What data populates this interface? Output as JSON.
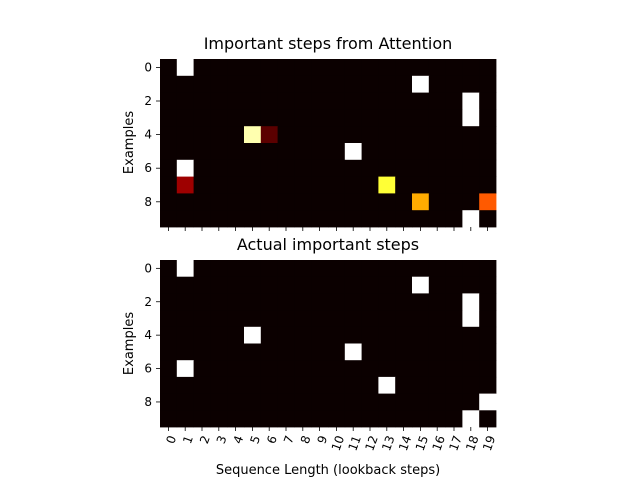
{
  "chart_data": [
    {
      "type": "heatmap",
      "title": "Important steps from Attention",
      "xlabel": "",
      "ylabel": "Examples",
      "x_ticks": [
        "0",
        "1",
        "2",
        "3",
        "4",
        "5",
        "6",
        "7",
        "8",
        "9",
        "10",
        "11",
        "12",
        "13",
        "14",
        "15",
        "16",
        "17",
        "18",
        "19"
      ],
      "x_tick_labels_visible": false,
      "y_ticks": [
        0,
        2,
        4,
        6,
        8
      ],
      "rows": 10,
      "cols": 20,
      "colormap": "hot",
      "value_range": [
        0,
        1
      ],
      "values": [
        [
          0,
          1,
          0,
          0,
          0,
          0,
          0,
          0,
          0,
          0,
          0,
          0,
          0,
          0,
          0,
          0,
          0,
          0,
          0,
          0
        ],
        [
          0,
          0,
          0,
          0,
          0,
          0,
          0,
          0,
          0,
          0,
          0,
          0,
          0,
          0,
          0,
          1,
          0,
          0,
          0,
          0
        ],
        [
          0,
          0,
          0,
          0,
          0,
          0,
          0,
          0,
          0,
          0,
          0,
          0,
          0,
          0,
          0,
          0,
          0,
          0,
          1,
          0
        ],
        [
          0,
          0,
          0,
          0,
          0,
          0,
          0,
          0,
          0,
          0,
          0,
          0,
          0,
          0,
          0,
          0,
          0,
          0,
          1,
          0
        ],
        [
          0,
          0,
          0,
          0,
          0,
          0.92,
          0.12,
          0,
          0,
          0,
          0,
          0,
          0,
          0,
          0,
          0,
          0,
          0,
          0,
          0
        ],
        [
          0,
          0,
          0,
          0,
          0,
          0,
          0,
          0,
          0,
          0,
          0,
          1,
          0,
          0,
          0,
          0,
          0,
          0,
          0,
          0
        ],
        [
          0,
          1,
          0,
          0,
          0,
          0,
          0,
          0,
          0,
          0,
          0,
          0,
          0,
          0,
          0,
          0,
          0,
          0,
          0,
          0
        ],
        [
          0,
          0.22,
          0,
          0,
          0,
          0,
          0,
          0,
          0,
          0,
          0,
          0,
          0,
          0.8,
          0,
          0,
          0,
          0,
          0,
          0
        ],
        [
          0,
          0,
          0,
          0,
          0,
          0,
          0,
          0,
          0,
          0,
          0,
          0,
          0,
          0,
          0,
          0.62,
          0,
          0,
          0,
          0.5
        ],
        [
          0,
          0,
          0,
          0,
          0,
          0,
          0,
          0,
          0,
          0,
          0,
          0,
          0,
          0,
          0,
          0,
          0,
          0,
          1,
          0
        ]
      ]
    },
    {
      "type": "heatmap",
      "title": "Actual important steps",
      "xlabel": "Sequence Length (lookback steps)",
      "ylabel": "Examples",
      "x_ticks": [
        "0",
        "1",
        "2",
        "3",
        "4",
        "5",
        "6",
        "7",
        "8",
        "9",
        "10",
        "11",
        "12",
        "13",
        "14",
        "15",
        "16",
        "17",
        "18",
        "19"
      ],
      "x_tick_labels_visible": true,
      "y_ticks": [
        0,
        2,
        4,
        6,
        8
      ],
      "rows": 10,
      "cols": 20,
      "colormap": "hot",
      "value_range": [
        0,
        1
      ],
      "values": [
        [
          0,
          1,
          0,
          0,
          0,
          0,
          0,
          0,
          0,
          0,
          0,
          0,
          0,
          0,
          0,
          0,
          0,
          0,
          0,
          0
        ],
        [
          0,
          0,
          0,
          0,
          0,
          0,
          0,
          0,
          0,
          0,
          0,
          0,
          0,
          0,
          0,
          1,
          0,
          0,
          0,
          0
        ],
        [
          0,
          0,
          0,
          0,
          0,
          0,
          0,
          0,
          0,
          0,
          0,
          0,
          0,
          0,
          0,
          0,
          0,
          0,
          1,
          0
        ],
        [
          0,
          0,
          0,
          0,
          0,
          0,
          0,
          0,
          0,
          0,
          0,
          0,
          0,
          0,
          0,
          0,
          0,
          0,
          1,
          0
        ],
        [
          0,
          0,
          0,
          0,
          0,
          1,
          0,
          0,
          0,
          0,
          0,
          0,
          0,
          0,
          0,
          0,
          0,
          0,
          0,
          0
        ],
        [
          0,
          0,
          0,
          0,
          0,
          0,
          0,
          0,
          0,
          0,
          0,
          1,
          0,
          0,
          0,
          0,
          0,
          0,
          0,
          0
        ],
        [
          0,
          1,
          0,
          0,
          0,
          0,
          0,
          0,
          0,
          0,
          0,
          0,
          0,
          0,
          0,
          0,
          0,
          0,
          0,
          0
        ],
        [
          0,
          0,
          0,
          0,
          0,
          0,
          0,
          0,
          0,
          0,
          0,
          0,
          0,
          1,
          0,
          0,
          0,
          0,
          0,
          0
        ],
        [
          0,
          0,
          0,
          0,
          0,
          0,
          0,
          0,
          0,
          0,
          0,
          0,
          0,
          0,
          0,
          0,
          0,
          0,
          0,
          1
        ],
        [
          0,
          0,
          0,
          0,
          0,
          0,
          0,
          0,
          0,
          0,
          0,
          0,
          0,
          0,
          0,
          0,
          0,
          0,
          1,
          0
        ]
      ]
    }
  ]
}
